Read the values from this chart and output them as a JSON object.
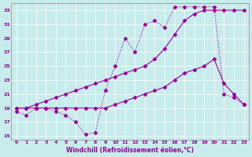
{
  "bg_color": "#c8ecec",
  "line_color": "#990099",
  "grid_color": "#ffffff",
  "xlabel": "Windchill (Refroidissement éolien,°C)",
  "xlim_min": -0.5,
  "xlim_max": 23.5,
  "ylim_min": 14.5,
  "ylim_max": 34.0,
  "yticks": [
    15,
    17,
    19,
    21,
    23,
    25,
    27,
    29,
    31,
    33
  ],
  "xticks": [
    0,
    1,
    2,
    3,
    4,
    5,
    6,
    7,
    8,
    9,
    10,
    11,
    12,
    13,
    14,
    15,
    16,
    17,
    18,
    19,
    20,
    21,
    22,
    23
  ],
  "line1_x": [
    0,
    1,
    2,
    3,
    4,
    5,
    6,
    7,
    8,
    9,
    10,
    11,
    12,
    13,
    14,
    15,
    16,
    17,
    18,
    19,
    20,
    21,
    22,
    23
  ],
  "line1_y": [
    18.5,
    18.0,
    19.0,
    19.0,
    18.5,
    18.0,
    17.0,
    15.2,
    15.5,
    21.5,
    25.0,
    29.0,
    27.0,
    31.0,
    31.5,
    30.5,
    33.5,
    33.5,
    33.5,
    33.5,
    33.5,
    21.0,
    20.5,
    19.5
  ],
  "line1_style": "dotted",
  "line1_marker": "D",
  "line2_x": [
    0,
    1,
    2,
    3,
    4,
    5,
    6,
    7,
    8,
    9,
    10,
    11,
    12,
    13,
    14,
    15,
    16,
    17,
    18,
    19,
    20,
    21,
    22,
    23
  ],
  "line2_y": [
    19.0,
    19.0,
    19.5,
    20.0,
    20.5,
    21.0,
    21.5,
    22.0,
    22.5,
    23.0,
    23.5,
    24.0,
    24.5,
    25.0,
    26.0,
    27.5,
    29.5,
    31.5,
    32.5,
    33.0,
    33.0,
    33.0,
    33.0,
    33.0
  ],
  "line2_style": "solid",
  "line2_marker": "D",
  "line3_x": [
    0,
    1,
    2,
    3,
    4,
    5,
    6,
    7,
    8,
    9,
    10,
    11,
    12,
    13,
    14,
    15,
    16,
    17,
    18,
    19,
    20,
    21,
    22,
    23
  ],
  "line3_y": [
    19.0,
    19.0,
    19.0,
    19.0,
    19.0,
    19.0,
    19.0,
    19.0,
    19.0,
    19.0,
    19.5,
    20.0,
    20.5,
    21.0,
    21.5,
    22.0,
    23.0,
    24.0,
    24.5,
    25.0,
    26.0,
    22.5,
    21.0,
    19.5
  ],
  "line3_style": "solid",
  "line3_marker": "D"
}
